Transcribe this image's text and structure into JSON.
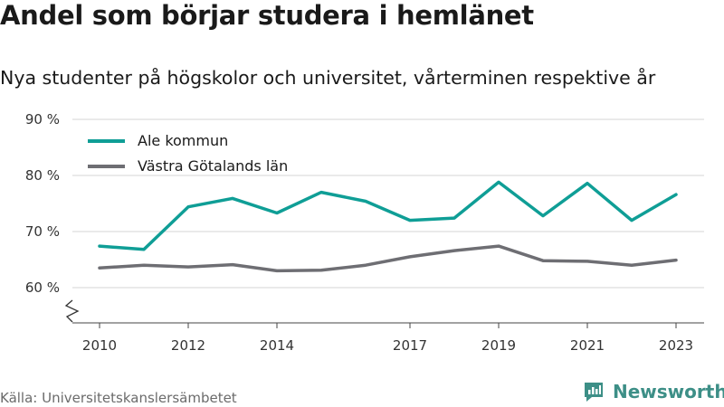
{
  "chart_data": {
    "type": "line",
    "title": "Andel som börjar studera i hemlänet",
    "subtitle": "Nya studenter på högskolor och universitet, vårterminen respektive år",
    "x": [
      2010,
      2011,
      2012,
      2013,
      2014,
      2015,
      2016,
      2017,
      2018,
      2019,
      2020,
      2021,
      2022,
      2023
    ],
    "x_tick_values": [
      2010,
      2012,
      2014,
      2017,
      2019,
      2021,
      2023
    ],
    "x_tick_labels": [
      "2010",
      "2012",
      "2014",
      "2017",
      "2019",
      "2021",
      "2023"
    ],
    "y_ticks": [
      60,
      70,
      80,
      90
    ],
    "y_tick_labels": [
      "60 %",
      "70 %",
      "80 %",
      "90 %"
    ],
    "ylim": [
      60,
      90
    ],
    "axis_break": true,
    "grid": true,
    "legend_position": "top-left",
    "series": [
      {
        "name": "Ale kommun",
        "color": "#0f9e96",
        "values": [
          67.4,
          66.8,
          74.4,
          75.9,
          73.3,
          77.0,
          75.4,
          72.0,
          72.4,
          78.8,
          72.8,
          78.6,
          72.0,
          76.6
        ]
      },
      {
        "name": "Västra Götalands län",
        "color": "#6e6e73",
        "values": [
          63.5,
          64.0,
          63.7,
          64.1,
          63.0,
          63.1,
          64.0,
          65.5,
          66.6,
          67.4,
          64.8,
          64.7,
          64.0,
          64.9
        ]
      }
    ]
  },
  "footer": {
    "source": "Källa: Universitetskanslersämbetet",
    "brand": "Newsworthy",
    "brand_color": "#3d8f87",
    "logo_icon": "newsworthy-logo-icon"
  }
}
